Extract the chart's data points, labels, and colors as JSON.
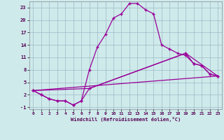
{
  "xlabel": "Windchill (Refroidissement éolien,°C)",
  "background_color": "#ceeaea",
  "line_color": "#990099",
  "xlim": [
    -0.5,
    23.5
  ],
  "ylim": [
    -1.5,
    24.5
  ],
  "yticks": [
    -1,
    2,
    5,
    8,
    11,
    14,
    17,
    20,
    23
  ],
  "xticks": [
    0,
    1,
    2,
    3,
    4,
    5,
    6,
    7,
    8,
    9,
    10,
    11,
    12,
    13,
    14,
    15,
    16,
    17,
    18,
    19,
    20,
    21,
    22,
    23
  ],
  "curve1_x": [
    0,
    1,
    2,
    3,
    4,
    5,
    6,
    7,
    8,
    9,
    10,
    11,
    12,
    13,
    14,
    15,
    16,
    17,
    18,
    19,
    20,
    21,
    22,
    23
  ],
  "curve1_y": [
    3.0,
    2.0,
    1.0,
    0.5,
    0.5,
    -0.5,
    0.5,
    8.0,
    13.5,
    16.5,
    20.5,
    21.5,
    24.0,
    24.0,
    22.5,
    21.5,
    14.0,
    13.0,
    12.0,
    11.5,
    9.5,
    9.0,
    7.0,
    6.5
  ],
  "curve2_x": [
    0,
    1,
    2,
    3,
    4,
    5,
    6,
    7,
    19,
    20,
    21,
    22,
    23
  ],
  "curve2_y": [
    3.0,
    2.0,
    1.0,
    0.5,
    0.5,
    -0.5,
    0.5,
    3.5,
    12.0,
    9.5,
    9.0,
    7.0,
    6.5
  ],
  "curve_line1_x": [
    0,
    23
  ],
  "curve_line1_y": [
    3.0,
    6.5
  ],
  "curve_line2_x": [
    0,
    7,
    19,
    23
  ],
  "curve_line2_y": [
    3.0,
    3.5,
    12.0,
    6.5
  ],
  "grid_color": "#a0b8c8",
  "font_family": "monospace"
}
